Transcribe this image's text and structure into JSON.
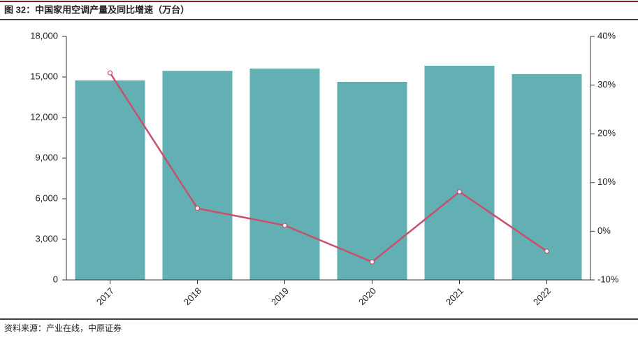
{
  "title": "图 32：中国家用空调产量及同比增速（万台）",
  "source": "资料来源：产业在线，中原证券",
  "chart_data": {
    "type": "combo",
    "categories": [
      "2017",
      "2018",
      "2019",
      "2020",
      "2021",
      "2022"
    ],
    "series": [
      {
        "type": "bar",
        "color": "#62b0b3",
        "values": [
          14750,
          15450,
          15620,
          14640,
          15830,
          15210
        ]
      },
      {
        "type": "line",
        "axis": "y2",
        "color": "#c8506a",
        "values": [
          32.5,
          4.7,
          1.2,
          -6.3,
          8.1,
          -4.1
        ]
      }
    ],
    "ylim": [
      0,
      18000
    ],
    "yticks": [
      0,
      {
        "value": 3000,
        "label": "3,000"
      },
      {
        "value": 6000,
        "label": "6,000"
      },
      {
        "value": 9000,
        "label": "9,000"
      },
      {
        "value": 12000,
        "label": "12,000"
      },
      {
        "value": 15000,
        "label": "15,000"
      },
      {
        "value": 18000,
        "label": "18,000"
      }
    ],
    "y2lim": [
      -10,
      40
    ],
    "y2ticks": [
      {
        "value": -10,
        "label": "-10%"
      },
      {
        "value": 0,
        "label": "0%"
      },
      {
        "value": 10,
        "label": "10%"
      },
      {
        "value": 20,
        "label": "20%"
      },
      {
        "value": 30,
        "label": "30%"
      },
      {
        "value": 40,
        "label": "40%"
      }
    ]
  }
}
